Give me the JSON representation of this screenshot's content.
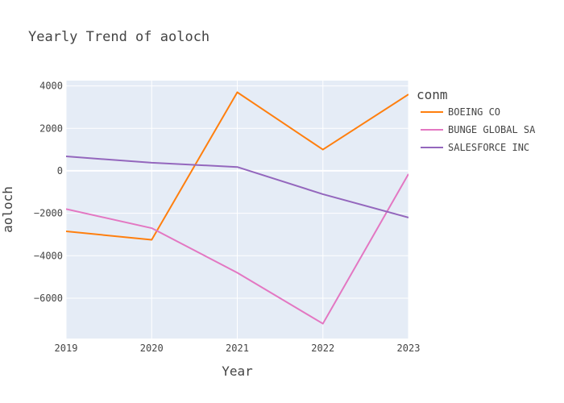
{
  "chart_data": {
    "type": "line",
    "title": "Yearly Trend of aoloch",
    "xlabel": "Year",
    "ylabel": "aoloch",
    "x": [
      2019,
      2020,
      2021,
      2022,
      2023
    ],
    "xlim": [
      2019,
      2023
    ],
    "ylim": [
      -7900,
      4250
    ],
    "yticks": [
      -6000,
      -4000,
      -2000,
      0,
      2000,
      4000
    ],
    "ytick_labels": [
      "−6000",
      "−4000",
      "−2000",
      "0",
      "2000",
      "4000"
    ],
    "grid": true,
    "legend": {
      "title": "conm",
      "position": "right"
    },
    "series": [
      {
        "name": "BOEING CO",
        "color": "#ff7f0e",
        "values": [
          -2850,
          -3250,
          3700,
          1000,
          3600
        ]
      },
      {
        "name": "BUNGE GLOBAL SA",
        "color": "#e377c2",
        "values": [
          -1800,
          -2700,
          -4800,
          -7200,
          -150
        ]
      },
      {
        "name": "SALESFORCE INC",
        "color": "#9467bd",
        "values": [
          680,
          380,
          180,
          -1100,
          -2200
        ]
      }
    ]
  }
}
